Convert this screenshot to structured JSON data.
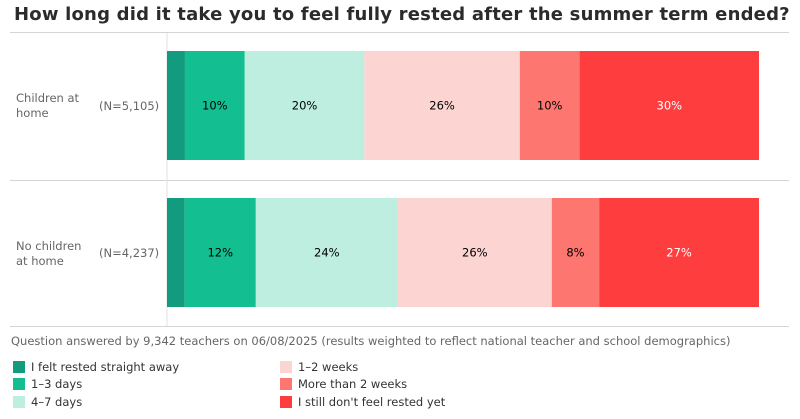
{
  "chart_data": {
    "type": "bar",
    "orientation": "horizontal-stacked-100",
    "title": "How long did it take you to feel fully rested after the summer term ended?",
    "categories": [
      "I felt rested straight away",
      "1–3 days",
      "4–7 days",
      "1–2 weeks",
      "More than 2 weeks",
      "I still don't feel rested yet"
    ],
    "colors": [
      "#129b7e",
      "#13bf91",
      "#beeee0",
      "#fcd4d1",
      "#fd7670",
      "#fd3d3e"
    ],
    "label_colors": [
      "#000000",
      "#000000",
      "#000000",
      "#000000",
      "#000000",
      "#ffffff"
    ],
    "rows": [
      {
        "label": "Children at home",
        "n": "(N=5,105)",
        "values": [
          3,
          10,
          20,
          26,
          10,
          30
        ],
        "labels": [
          "",
          "10%",
          "20%",
          "26%",
          "10%",
          "30%"
        ]
      },
      {
        "label": "No children at home",
        "n": "(N=4,237)",
        "values": [
          3,
          12,
          24,
          26,
          8,
          27
        ],
        "labels": [
          "",
          "12%",
          "24%",
          "26%",
          "8%",
          "27%"
        ]
      }
    ],
    "legend_position": "bottom"
  },
  "footnote": "Question answered by 9,342 teachers on 06/08/2025 (results weighted to reflect national teacher and school demographics)"
}
